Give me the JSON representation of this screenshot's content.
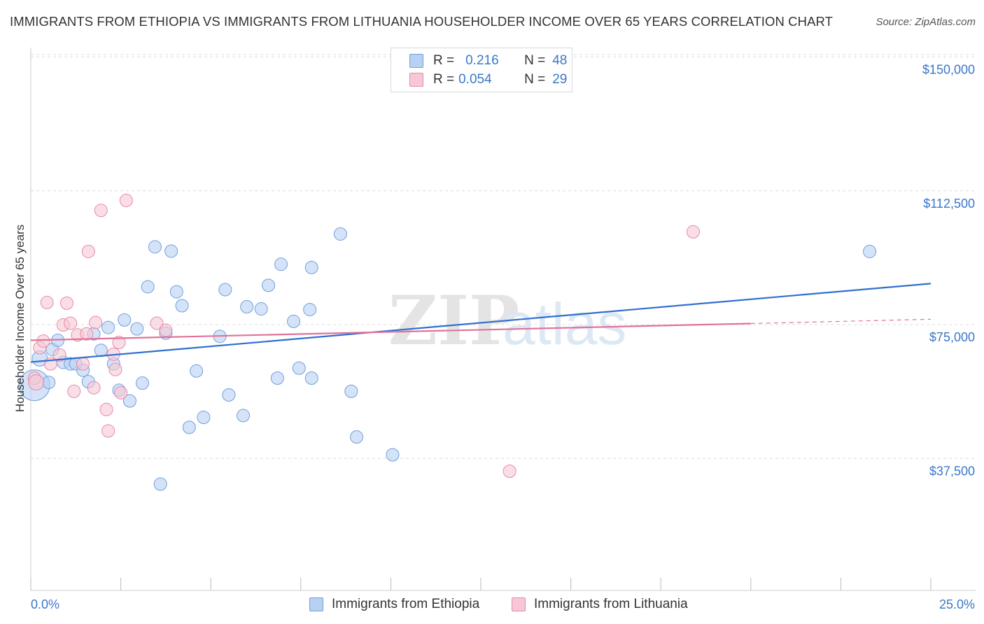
{
  "title": "IMMIGRANTS FROM ETHIOPIA VS IMMIGRANTS FROM LITHUANIA HOUSEHOLDER INCOME OVER 65 YEARS CORRELATION CHART",
  "source": "Source: ZipAtlas.com",
  "watermark": {
    "zip": "ZIP",
    "atlas": "atlas"
  },
  "legend": {
    "ethiopia": {
      "r_label": "R =",
      "r_value": "0.216",
      "n_label": "N =",
      "n_value": "48"
    },
    "lithuania": {
      "r_label": "R =",
      "r_value": "0.054",
      "n_label": "N =",
      "n_value": "29"
    }
  },
  "chart_data": {
    "type": "scatter",
    "title": "IMMIGRANTS FROM ETHIOPIA VS IMMIGRANTS FROM LITHUANIA HOUSEHOLDER INCOME OVER 65 YEARS CORRELATION CHART",
    "xlabel": "",
    "ylabel": "Householder Income Over 65 years",
    "xlim": [
      0,
      25
    ],
    "ylim": [
      0,
      155000
    ],
    "x_tick_labels": [
      "0.0%",
      "25.0%"
    ],
    "y_ticks": [
      37500,
      75000,
      112500,
      150000
    ],
    "y_tick_labels": [
      "$37,500",
      "$75,000",
      "$112,500",
      "$150,000"
    ],
    "series": [
      {
        "name": "Immigrants from Ethiopia",
        "color": "#6fa0e0",
        "fill": "#b8d0f2",
        "r": 0.216,
        "n": 48,
        "trend": {
          "x": [
            0,
            25
          ],
          "y": [
            64500,
            86500
          ]
        },
        "points": [
          {
            "x": 0.1,
            "y": 58000,
            "s": 22
          },
          {
            "x": 0.25,
            "y": 65500,
            "s": 11
          },
          {
            "x": 0.5,
            "y": 58800,
            "s": 9
          },
          {
            "x": 0.6,
            "y": 68000,
            "s": 9
          },
          {
            "x": 0.75,
            "y": 70600,
            "s": 9
          },
          {
            "x": 0.9,
            "y": 64400,
            "s": 9
          },
          {
            "x": 1.1,
            "y": 64000,
            "s": 9
          },
          {
            "x": 1.25,
            "y": 64000,
            "s": 9
          },
          {
            "x": 1.45,
            "y": 62200,
            "s": 9
          },
          {
            "x": 1.6,
            "y": 59000,
            "s": 9
          },
          {
            "x": 1.75,
            "y": 72400,
            "s": 9
          },
          {
            "x": 1.95,
            "y": 67800,
            "s": 9
          },
          {
            "x": 2.15,
            "y": 74200,
            "s": 9
          },
          {
            "x": 2.3,
            "y": 64000,
            "s": 9
          },
          {
            "x": 2.45,
            "y": 56600,
            "s": 9
          },
          {
            "x": 2.6,
            "y": 76300,
            "s": 9
          },
          {
            "x": 2.75,
            "y": 53600,
            "s": 9
          },
          {
            "x": 2.95,
            "y": 73800,
            "s": 9
          },
          {
            "x": 3.1,
            "y": 58600,
            "s": 9
          },
          {
            "x": 3.25,
            "y": 85600,
            "s": 9
          },
          {
            "x": 3.45,
            "y": 96800,
            "s": 9
          },
          {
            "x": 3.6,
            "y": 30300,
            "s": 9
          },
          {
            "x": 3.75,
            "y": 72600,
            "s": 9
          },
          {
            "x": 3.9,
            "y": 95600,
            "s": 9
          },
          {
            "x": 4.05,
            "y": 84200,
            "s": 9
          },
          {
            "x": 4.2,
            "y": 80300,
            "s": 9
          },
          {
            "x": 4.4,
            "y": 46200,
            "s": 9
          },
          {
            "x": 4.6,
            "y": 62000,
            "s": 9
          },
          {
            "x": 4.8,
            "y": 49000,
            "s": 9
          },
          {
            "x": 5.25,
            "y": 71700,
            "s": 9
          },
          {
            "x": 5.4,
            "y": 84800,
            "s": 9
          },
          {
            "x": 5.5,
            "y": 55300,
            "s": 9
          },
          {
            "x": 5.9,
            "y": 49500,
            "s": 9
          },
          {
            "x": 6.0,
            "y": 80000,
            "s": 9
          },
          {
            "x": 6.4,
            "y": 79400,
            "s": 9
          },
          {
            "x": 6.6,
            "y": 86000,
            "s": 9
          },
          {
            "x": 6.85,
            "y": 60000,
            "s": 9
          },
          {
            "x": 6.95,
            "y": 91900,
            "s": 9
          },
          {
            "x": 7.3,
            "y": 75900,
            "s": 9
          },
          {
            "x": 7.45,
            "y": 62800,
            "s": 9
          },
          {
            "x": 7.75,
            "y": 79200,
            "s": 9
          },
          {
            "x": 7.8,
            "y": 60000,
            "s": 9
          },
          {
            "x": 7.8,
            "y": 91000,
            "s": 9
          },
          {
            "x": 8.6,
            "y": 100400,
            "s": 9
          },
          {
            "x": 8.9,
            "y": 56300,
            "s": 9
          },
          {
            "x": 9.05,
            "y": 43500,
            "s": 9
          },
          {
            "x": 10.05,
            "y": 38500,
            "s": 9
          },
          {
            "x": 23.3,
            "y": 95500,
            "s": 9
          }
        ]
      },
      {
        "name": "Immigrants from Lithuania",
        "color": "#e88aa8",
        "fill": "#f6c8d6",
        "r": 0.054,
        "n": 29,
        "trend": {
          "x": [
            0,
            20
          ],
          "y": [
            70600,
            75300
          ]
        },
        "trend_dashed": {
          "x": [
            20,
            25
          ],
          "y": [
            75300,
            76500
          ]
        },
        "points": [
          {
            "x": 0.1,
            "y": 60000,
            "s": 9
          },
          {
            "x": 0.25,
            "y": 68500,
            "s": 9
          },
          {
            "x": 0.35,
            "y": 70400,
            "s": 9
          },
          {
            "x": 0.45,
            "y": 81200,
            "s": 9
          },
          {
            "x": 0.55,
            "y": 64000,
            "s": 9
          },
          {
            "x": 0.8,
            "y": 66500,
            "s": 9
          },
          {
            "x": 0.9,
            "y": 74900,
            "s": 9
          },
          {
            "x": 1.0,
            "y": 81000,
            "s": 9
          },
          {
            "x": 1.1,
            "y": 75400,
            "s": 9
          },
          {
            "x": 1.2,
            "y": 56300,
            "s": 9
          },
          {
            "x": 1.3,
            "y": 72100,
            "s": 9
          },
          {
            "x": 1.45,
            "y": 64000,
            "s": 9
          },
          {
            "x": 1.55,
            "y": 72400,
            "s": 9
          },
          {
            "x": 1.6,
            "y": 95500,
            "s": 9
          },
          {
            "x": 1.75,
            "y": 57300,
            "s": 9
          },
          {
            "x": 1.8,
            "y": 75600,
            "s": 9
          },
          {
            "x": 1.95,
            "y": 107000,
            "s": 9
          },
          {
            "x": 2.1,
            "y": 51200,
            "s": 9
          },
          {
            "x": 2.15,
            "y": 45200,
            "s": 9
          },
          {
            "x": 2.3,
            "y": 66700,
            "s": 9
          },
          {
            "x": 2.35,
            "y": 62400,
            "s": 9
          },
          {
            "x": 2.45,
            "y": 70000,
            "s": 9
          },
          {
            "x": 2.5,
            "y": 55900,
            "s": 9
          },
          {
            "x": 2.65,
            "y": 109800,
            "s": 9
          },
          {
            "x": 3.5,
            "y": 75400,
            "s": 9
          },
          {
            "x": 3.75,
            "y": 73400,
            "s": 9
          },
          {
            "x": 13.3,
            "y": 33900,
            "s": 9
          },
          {
            "x": 18.4,
            "y": 101000,
            "s": 9
          },
          {
            "x": 0.15,
            "y": 58800,
            "s": 11
          }
        ]
      }
    ]
  }
}
